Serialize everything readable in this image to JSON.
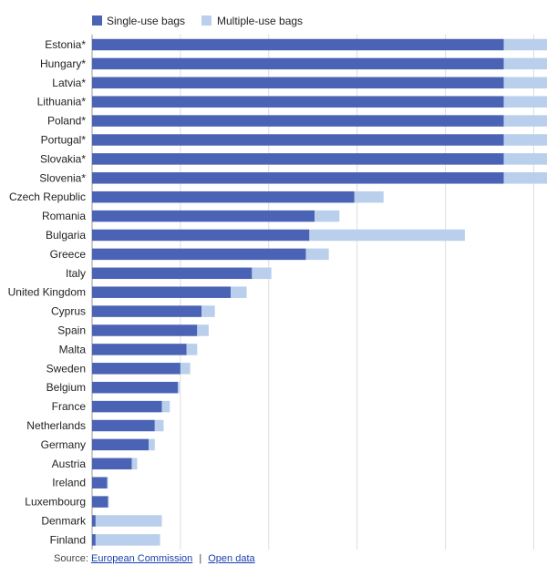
{
  "chart_data": {
    "type": "bar",
    "orientation": "horizontal",
    "stacked": true,
    "categories": [
      "Estonia*",
      "Hungary*",
      "Latvia*",
      "Lithuania*",
      "Poland*",
      "Portugal*",
      "Slovakia*",
      "Slovenia*",
      "Czech Republic",
      "Romania",
      "Bulgaria",
      "Greece",
      "Italy",
      "United Kingdom",
      "Cyprus",
      "Spain",
      "Malta",
      "Sweden",
      "Belgium",
      "France",
      "Netherlands",
      "Germany",
      "Austria",
      "Ireland",
      "Luxembourg",
      "Denmark",
      "Finland"
    ],
    "series": [
      {
        "name": "Single-use bags",
        "color": "#4a63b5",
        "values": [
          466,
          466,
          466,
          466,
          466,
          466,
          466,
          466,
          297,
          252,
          246,
          242,
          181,
          157,
          124,
          119,
          107,
          100,
          97,
          79,
          71,
          64,
          45,
          17,
          18,
          4,
          4
        ]
      },
      {
        "name": "Multiple-use bags",
        "color": "#b9cfec",
        "values": [
          49,
          49,
          49,
          49,
          49,
          49,
          49,
          49,
          33,
          28,
          176,
          26,
          22,
          18,
          15,
          13,
          12,
          11,
          2,
          9,
          10,
          7,
          6,
          1,
          1,
          75,
          73
        ]
      }
    ],
    "xlim": [
      0,
      515
    ],
    "gridlines": [
      100,
      200,
      300,
      400,
      500
    ],
    "grid": true,
    "legend_position": "top-left",
    "title": "",
    "xlabel": "",
    "ylabel": ""
  },
  "source": {
    "prefix": "Source:",
    "link1": "European Commission",
    "separator": "|",
    "link2": "Open data"
  }
}
